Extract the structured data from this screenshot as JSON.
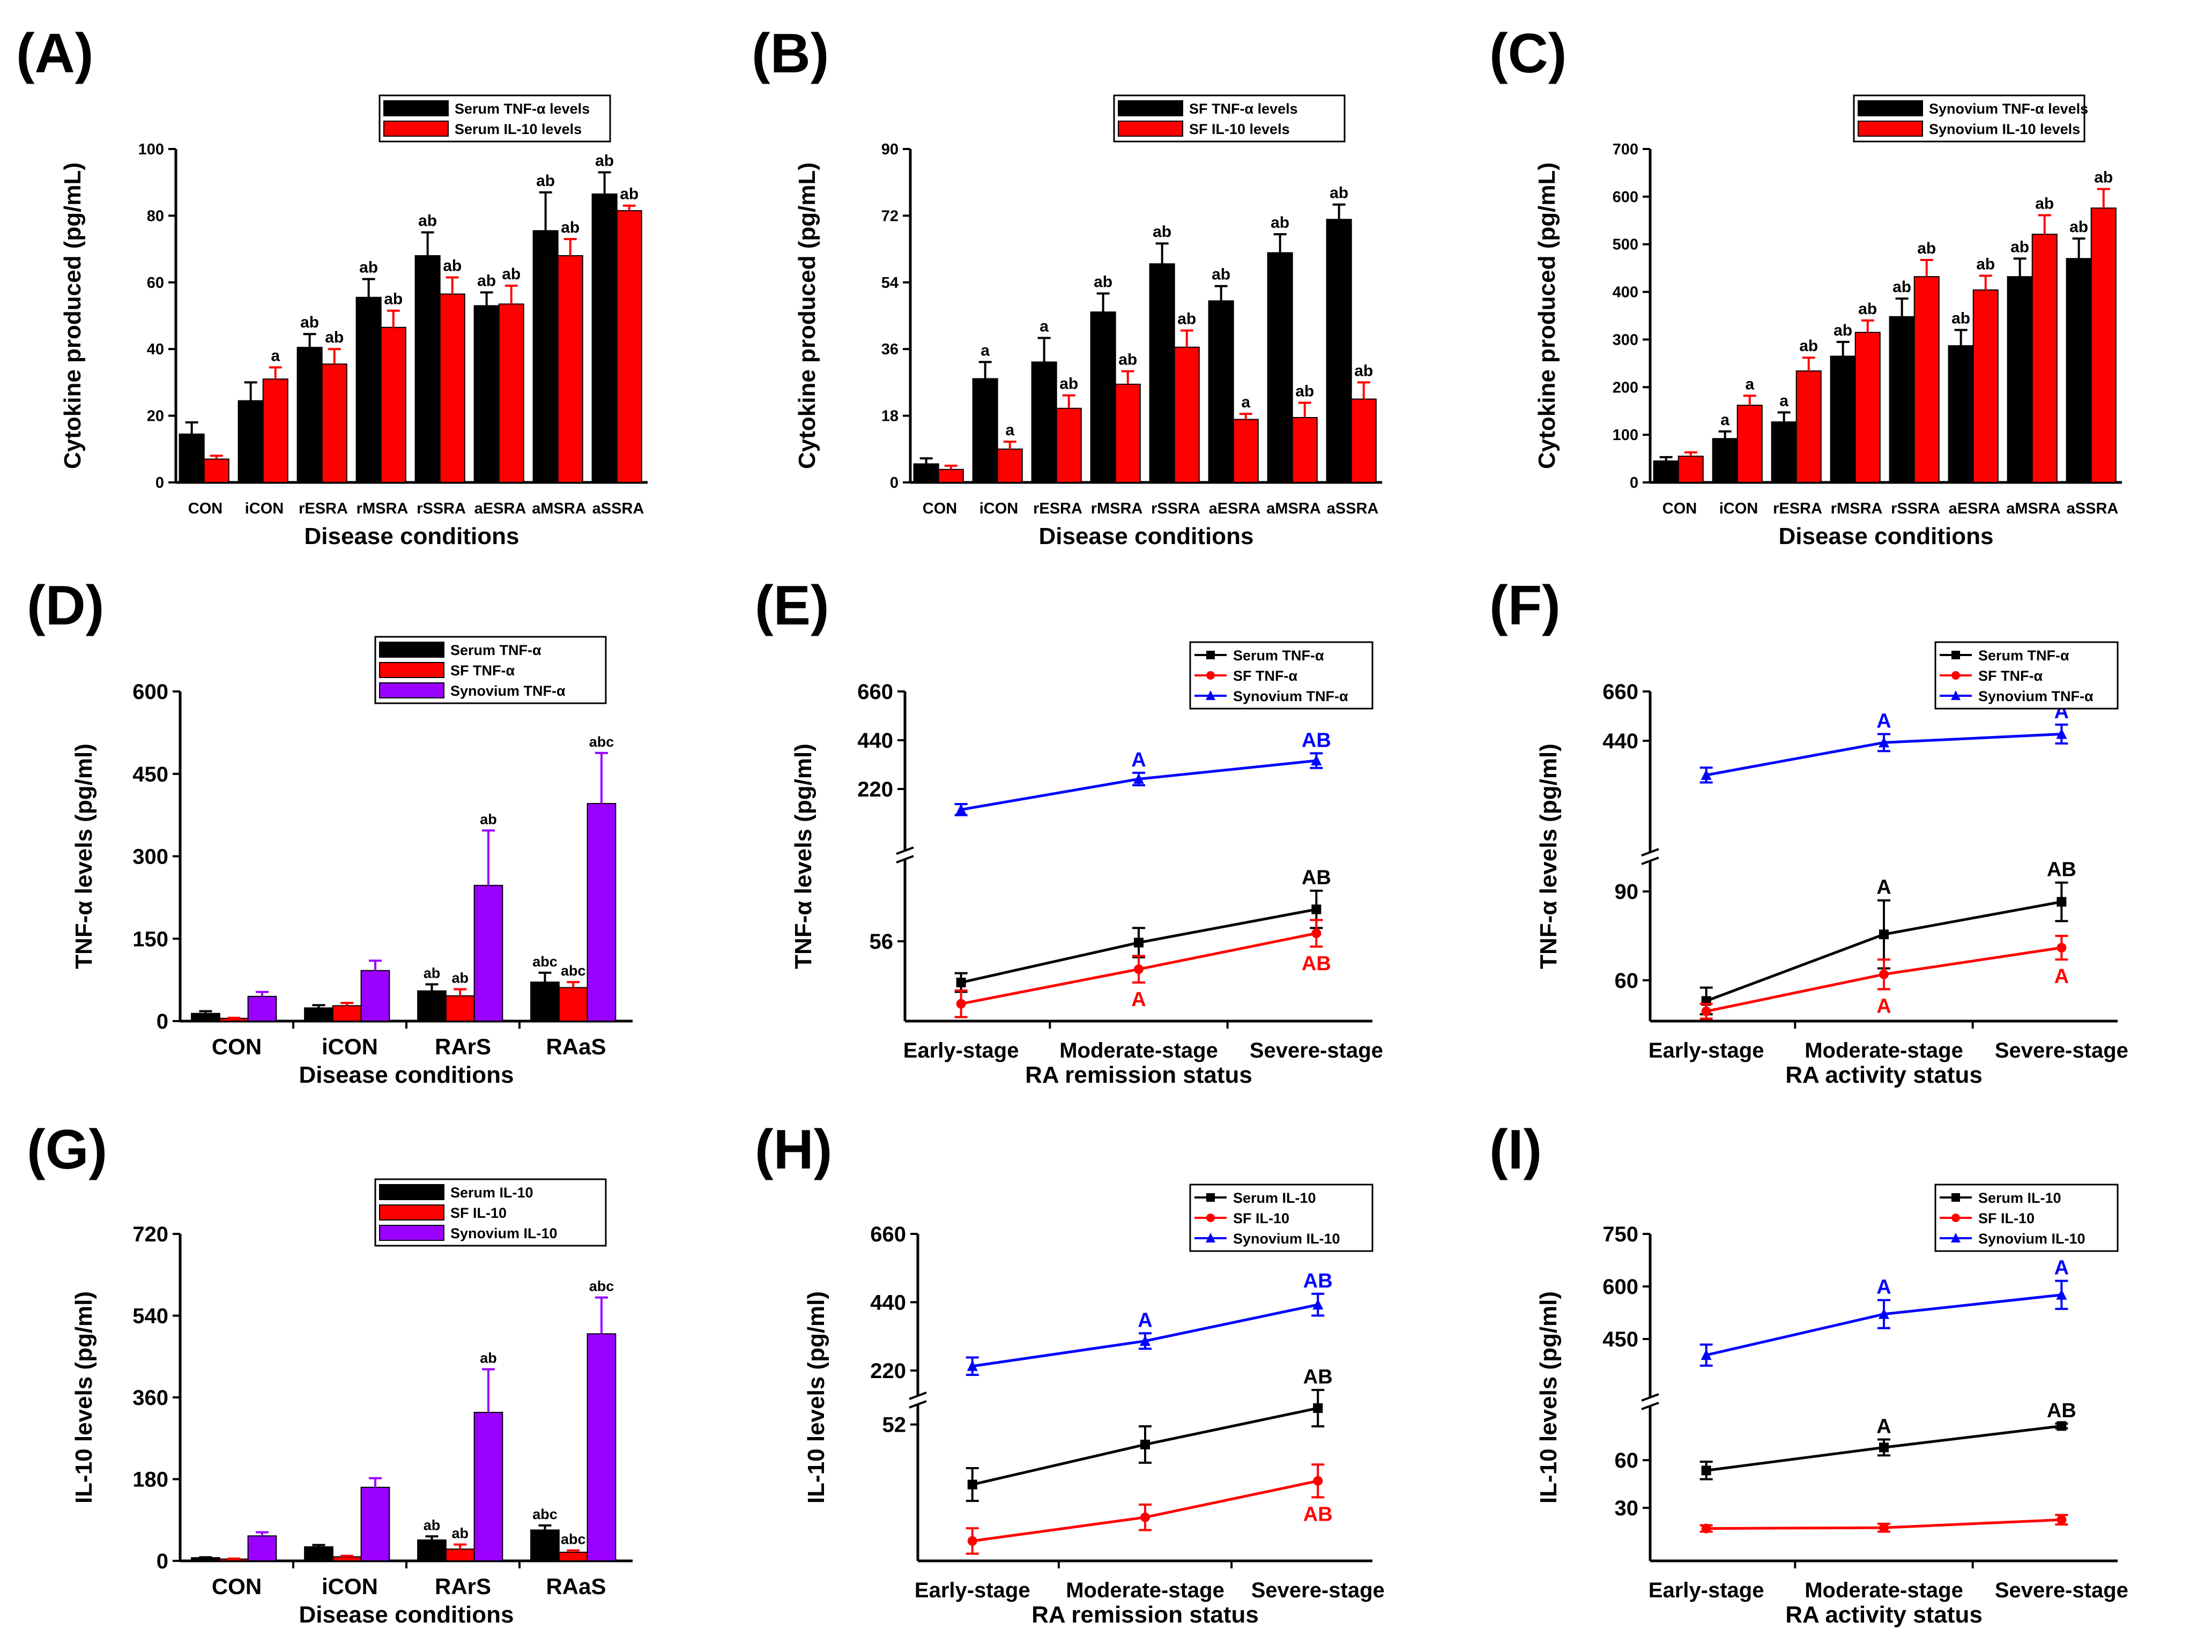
{
  "figure": {
    "panels": [
      {
        "id": "A",
        "label": "(A)",
        "type": "bar",
        "legend": [
          "Serum TNF-α levels",
          "Serum IL-10 levels"
        ]
      },
      {
        "id": "B",
        "label": "(B)",
        "type": "bar",
        "legend": [
          "SF TNF-α levels",
          "SF IL-10 levels"
        ]
      },
      {
        "id": "C",
        "label": "(C)",
        "type": "bar",
        "legend": [
          "Synovium TNF-α levels",
          "Synovium IL-10 levels"
        ]
      },
      {
        "id": "D",
        "label": "(D)",
        "type": "bar",
        "legend": [
          "Serum TNF-α",
          "SF TNF-α",
          "Synovium TNF-α"
        ]
      },
      {
        "id": "E",
        "label": "(E)",
        "type": "line",
        "legend": [
          "Serum TNF-α",
          "SF TNF-α",
          "Synovium TNF-α"
        ]
      },
      {
        "id": "F",
        "label": "(F)",
        "type": "line",
        "legend": [
          "Serum TNF-α",
          "SF TNF-α",
          "Synovium TNF-α"
        ]
      },
      {
        "id": "G",
        "label": "(G)",
        "type": "bar",
        "legend": [
          "Serum IL-10",
          "SF IL-10",
          "Synovium IL-10"
        ]
      },
      {
        "id": "H",
        "label": "(H)",
        "type": "line",
        "legend": [
          "Serum IL-10",
          "SF IL-10",
          "Synovium IL-10"
        ]
      },
      {
        "id": "I",
        "label": "(I)",
        "type": "line",
        "legend": [
          "Serum IL-10",
          "SF IL-10",
          "Synovium IL-10"
        ]
      }
    ]
  },
  "colors": {
    "black": "#000000",
    "red": "#ff0000",
    "purple": "#9a00ff",
    "blue": "#0000ff"
  },
  "chart_data": [
    {
      "panel": "A",
      "type": "bar",
      "title": "(A)",
      "xlabel": "Disease conditions",
      "ylabel": "Cytokine produced (pg/mL)",
      "ylim": [
        0,
        100
      ],
      "yticks": [
        0,
        20,
        40,
        60,
        80,
        100
      ],
      "categories": [
        "CON",
        "iCON",
        "rESRA",
        "rMSRA",
        "rSSRA",
        "aESRA",
        "aMSRA",
        "aSSRA"
      ],
      "series": [
        {
          "name": "Serum TNF-α levels",
          "color": "#000000",
          "values": [
            14.5,
            24.5,
            40.5,
            55.5,
            68,
            53,
            75.5,
            86.5
          ],
          "errors": [
            3.5,
            5.5,
            4,
            5.5,
            7,
            4,
            11.5,
            6.5
          ],
          "annotations": [
            "",
            "",
            "ab",
            "ab",
            "ab",
            "ab",
            "ab",
            "ab"
          ]
        },
        {
          "name": "Serum IL-10 levels",
          "color": "#ff0000",
          "values": [
            7,
            31,
            35.5,
            46.5,
            56.5,
            53.5,
            68,
            81.5
          ],
          "errors": [
            1,
            3.5,
            4.5,
            5,
            5,
            5.5,
            5,
            1.5
          ],
          "annotations": [
            "",
            "a",
            "ab",
            "ab",
            "ab",
            "ab",
            "ab",
            "ab"
          ]
        }
      ]
    },
    {
      "panel": "B",
      "type": "bar",
      "title": "(B)",
      "xlabel": "Disease conditions",
      "ylabel": "Cytokine produced (pg/mL)",
      "ylim": [
        0,
        90
      ],
      "yticks": [
        0,
        18,
        36,
        54,
        72,
        90
      ],
      "categories": [
        "CON",
        "iCON",
        "rESRA",
        "rMSRA",
        "rSSRA",
        "aESRA",
        "aMSRA",
        "aSSRA"
      ],
      "series": [
        {
          "name": "SF TNF-α levels",
          "color": "#000000",
          "values": [
            5,
            28,
            32.5,
            46,
            59,
            49,
            62,
            71
          ],
          "errors": [
            1.5,
            4.5,
            6.5,
            5,
            5.5,
            4,
            5,
            4
          ],
          "annotations": [
            "",
            "a",
            "a",
            "ab",
            "ab",
            "ab",
            "ab",
            "ab"
          ]
        },
        {
          "name": "SF IL-10 levels",
          "color": "#ff0000",
          "values": [
            3.5,
            9,
            20,
            26.5,
            36.5,
            17,
            17.5,
            22.5
          ],
          "errors": [
            1,
            2,
            3.5,
            3.5,
            4.5,
            1.5,
            4,
            4.5
          ],
          "annotations": [
            "",
            "a",
            "ab",
            "ab",
            "ab",
            "a",
            "ab",
            "ab"
          ]
        }
      ]
    },
    {
      "panel": "C",
      "type": "bar",
      "title": "(C)",
      "xlabel": "Disease conditions",
      "ylabel": "Cytokine produced (pg/mL)",
      "ylim": [
        0,
        700
      ],
      "yticks": [
        0,
        100,
        200,
        300,
        400,
        500,
        600,
        700
      ],
      "categories": [
        "CON",
        "iCON",
        "rESRA",
        "rMSRA",
        "rSSRA",
        "aESRA",
        "aMSRA",
        "aSSRA"
      ],
      "series": [
        {
          "name": "Synovium TNF-α levels",
          "color": "#000000",
          "values": [
            45,
            92,
            127,
            265,
            348,
            287,
            432,
            470
          ],
          "errors": [
            8,
            15,
            20,
            30,
            38,
            33,
            38,
            42
          ],
          "annotations": [
            "",
            "a",
            "a",
            "ab",
            "ab",
            "ab",
            "ab",
            "ab"
          ]
        },
        {
          "name": "Synovium IL-10 levels",
          "color": "#ff0000",
          "values": [
            55,
            162,
            234,
            315,
            432,
            404,
            521,
            576
          ],
          "errors": [
            8,
            20,
            28,
            25,
            35,
            30,
            40,
            40
          ],
          "annotations": [
            "",
            "a",
            "ab",
            "ab",
            "ab",
            "ab",
            "ab",
            "ab"
          ]
        }
      ]
    },
    {
      "panel": "D",
      "type": "bar",
      "title": "(D)",
      "xlabel": "Disease conditions",
      "ylabel": "TNF-α levels (pg/ml)",
      "ylim": [
        0,
        600
      ],
      "yticks": [
        0,
        150,
        300,
        450,
        600
      ],
      "categories": [
        "CON",
        "iCON",
        "RArS",
        "RAaS"
      ],
      "series": [
        {
          "name": "Serum TNF-α",
          "color": "#000000",
          "values": [
            14,
            24,
            55,
            71
          ],
          "errors": [
            4,
            5,
            12,
            17
          ],
          "annotations": [
            "",
            "",
            "ab",
            "abc"
          ]
        },
        {
          "name": "SF TNF-α",
          "color": "#ff0000",
          "values": [
            5,
            28,
            46,
            61
          ],
          "errors": [
            1,
            5,
            12,
            10
          ],
          "annotations": [
            "",
            "",
            "ab",
            "abc"
          ]
        },
        {
          "name": "Synovium TNF-α",
          "color": "#9a00ff",
          "values": [
            45,
            92,
            247,
            396
          ],
          "errors": [
            8,
            18,
            100,
            92
          ],
          "annotations": [
            "",
            "",
            "ab",
            "abc"
          ]
        }
      ]
    },
    {
      "panel": "E",
      "type": "line",
      "title": "(E)",
      "xlabel": "RA remission status",
      "ylabel": "TNF-α levels (pg/ml)",
      "categories": [
        "Early-stage",
        "Moderate-stage",
        "Severe-stage"
      ],
      "axis_break": true,
      "upper_segment": {
        "ylim": [
          0,
          660
        ],
        "yticks": [
          220,
          440,
          660
        ]
      },
      "lower_segment": {
        "ylim": [
          28,
          82
        ],
        "yticks": [
          56
        ]
      },
      "series": [
        {
          "name": "Serum TNF-α",
          "color": "#000000",
          "marker": "square",
          "segment": "lower",
          "values": [
            40.5,
            55.5,
            68
          ],
          "errors": [
            3.5,
            5.5,
            7
          ],
          "annotations": [
            "",
            "",
            "AB"
          ]
        },
        {
          "name": "SF TNF-α",
          "color": "#ff0000",
          "marker": "circle",
          "segment": "lower",
          "values": [
            32.5,
            45.5,
            59
          ],
          "errors": [
            5,
            5,
            5
          ],
          "annotations": [
            "",
            "A",
            "AB"
          ]
        },
        {
          "name": "Synovium TNF-α",
          "color": "#0000ff",
          "marker": "triangle",
          "segment": "upper",
          "values": [
            127,
            265,
            348
          ],
          "errors": [
            25,
            28,
            33
          ],
          "annotations": [
            "",
            "A",
            "AB"
          ]
        }
      ]
    },
    {
      "panel": "F",
      "type": "line",
      "title": "(F)",
      "xlabel": "RA activity status",
      "ylabel": "TNF-α levels (pg/ml)",
      "categories": [
        "Early-stage",
        "Moderate-stage",
        "Severe-stage"
      ],
      "axis_break": true,
      "upper_segment": {
        "ylim": [
          0,
          660
        ],
        "yticks": [
          440,
          660
        ]
      },
      "lower_segment": {
        "ylim": [
          48,
          96
        ],
        "yticks": [
          60,
          90
        ]
      },
      "series": [
        {
          "name": "Serum TNF-α",
          "color": "#000000",
          "marker": "square",
          "segment": "lower",
          "values": [
            53,
            75.5,
            86.5
          ],
          "errors": [
            4.5,
            11.5,
            6.5
          ],
          "annotations": [
            "",
            "A",
            "AB"
          ]
        },
        {
          "name": "SF TNF-α",
          "color": "#ff0000",
          "marker": "circle",
          "segment": "lower",
          "values": [
            49.5,
            62,
            71
          ],
          "errors": [
            2.5,
            5,
            4
          ],
          "annotations": [
            "",
            "A",
            "A"
          ]
        },
        {
          "name": "Synovium TNF-α",
          "color": "#0000ff",
          "marker": "triangle",
          "segment": "upper",
          "values": [
            287,
            432,
            470
          ],
          "errors": [
            33,
            38,
            42
          ],
          "annotations": [
            "",
            "A",
            "A"
          ]
        }
      ]
    },
    {
      "panel": "G",
      "type": "bar",
      "title": "(G)",
      "xlabel": "Disease conditions",
      "ylabel": "IL-10 levels (pg/ml)",
      "ylim": [
        0,
        720
      ],
      "yticks": [
        0,
        180,
        360,
        540,
        720
      ],
      "categories": [
        "CON",
        "iCON",
        "RArS",
        "RAaS"
      ],
      "series": [
        {
          "name": "Serum IL-10",
          "color": "#000000",
          "values": [
            7,
            31,
            46,
            68
          ],
          "errors": [
            1,
            4,
            8,
            10
          ],
          "annotations": [
            "",
            "",
            "ab",
            "abc"
          ]
        },
        {
          "name": "SF IL-10",
          "color": "#ff0000",
          "values": [
            4,
            9,
            26,
            19
          ],
          "errors": [
            1,
            2,
            10,
            4
          ],
          "annotations": [
            "",
            "",
            "ab",
            "abc"
          ]
        },
        {
          "name": "Synovium IL-10",
          "color": "#9a00ff",
          "values": [
            55,
            162,
            327,
            500
          ],
          "errors": [
            8,
            20,
            95,
            80
          ],
          "annotations": [
            "",
            "",
            "ab",
            "abc"
          ]
        }
      ]
    },
    {
      "panel": "H",
      "type": "line",
      "title": "(H)",
      "xlabel": "RA remission status",
      "ylabel": "IL-10 levels (pg/ml)",
      "categories": [
        "Early-stage",
        "Moderate-stage",
        "Severe-stage"
      ],
      "axis_break": true,
      "upper_segment": {
        "ylim": [
          180,
          660
        ],
        "yticks": [
          220,
          440,
          660
        ]
      },
      "lower_segment": {
        "ylim": [
          16,
          54
        ],
        "yticks": [
          52
        ]
      },
      "series": [
        {
          "name": "Serum IL-10",
          "color": "#000000",
          "marker": "square",
          "segment": "lower",
          "values": [
            35.5,
            46.5,
            56.5
          ],
          "errors": [
            4.5,
            5,
            5
          ],
          "annotations": [
            "",
            "",
            "AB"
          ]
        },
        {
          "name": "SF IL-10",
          "color": "#ff0000",
          "marker": "circle",
          "segment": "lower",
          "values": [
            20,
            26.5,
            36.5
          ],
          "errors": [
            3.5,
            3.5,
            4.5
          ],
          "annotations": [
            "",
            "",
            "AB"
          ]
        },
        {
          "name": "Synovium IL-10",
          "color": "#0000ff",
          "marker": "triangle",
          "segment": "upper",
          "values": [
            234,
            315,
            432
          ],
          "errors": [
            28,
            25,
            35
          ],
          "annotations": [
            "",
            "A",
            "AB"
          ]
        }
      ]
    },
    {
      "panel": "I",
      "type": "line",
      "title": "(I)",
      "xlabel": "RA activity status",
      "ylabel": "IL-10 levels (pg/ml)",
      "categories": [
        "Early-stage",
        "Moderate-stage",
        "Severe-stage"
      ],
      "axis_break": true,
      "upper_segment": {
        "ylim": [
          320,
          750
        ],
        "yticks": [
          450,
          600,
          750
        ]
      },
      "lower_segment": {
        "ylim": [
          0,
          86
        ],
        "yticks": [
          30,
          60
        ]
      },
      "series": [
        {
          "name": "Serum IL-10",
          "color": "#000000",
          "marker": "square",
          "segment": "lower",
          "values": [
            53.5,
            68,
            81.5
          ],
          "errors": [
            5.5,
            5,
            1.5
          ],
          "annotations": [
            "",
            "A",
            "AB"
          ]
        },
        {
          "name": "SF IL-10",
          "color": "#ff0000",
          "marker": "circle",
          "segment": "lower",
          "values": [
            17,
            17.5,
            22.5
          ],
          "errors": [
            2,
            2.5,
            3
          ],
          "annotations": [
            "",
            "",
            ""
          ]
        },
        {
          "name": "Synovium IL-10",
          "color": "#0000ff",
          "marker": "triangle",
          "segment": "upper",
          "values": [
            404,
            521,
            576
          ],
          "errors": [
            30,
            40,
            40
          ],
          "annotations": [
            "",
            "A",
            "A"
          ]
        }
      ]
    }
  ]
}
